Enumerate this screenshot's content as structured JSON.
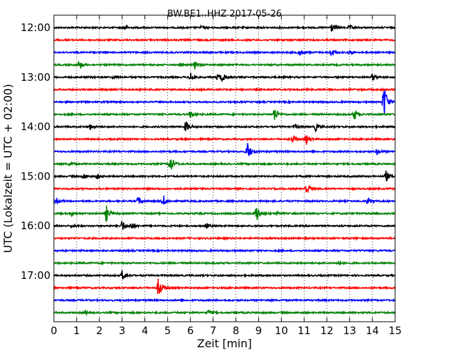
{
  "chart_data": {
    "type": "line",
    "title": "BW.BE1..HHZ 2017-05-26",
    "xlabel": "Zeit  [min]",
    "ylabel": "UTC (Lokalzeit = UTC + 02:00)",
    "xlim": [
      0,
      15
    ],
    "x_ticks": [
      0,
      1,
      2,
      3,
      4,
      5,
      6,
      7,
      8,
      9,
      10,
      11,
      12,
      13,
      14,
      15
    ],
    "y_tick_labels": [
      "12:00",
      "13:00",
      "14:00",
      "15:00",
      "16:00",
      "17:00"
    ],
    "row_interval_min": 15,
    "grid": "vertical dotted",
    "colors": [
      "#000000",
      "#ff0000",
      "#0000ff",
      "#008000"
    ],
    "rows": [
      {
        "start": "12:00",
        "color": "#000000",
        "events": [
          {
            "t": 3.1,
            "amp": 0.25
          },
          {
            "t": 6.5,
            "amp": 0.15
          },
          {
            "t": 12.2,
            "amp": 0.35
          },
          {
            "t": 13.0,
            "amp": 0.2
          }
        ]
      },
      {
        "start": "12:15",
        "color": "#ff0000",
        "events": []
      },
      {
        "start": "12:30",
        "color": "#0000ff",
        "events": [
          {
            "t": 10.8,
            "amp": 0.25
          },
          {
            "t": 12.2,
            "amp": 0.3
          },
          {
            "t": 13.0,
            "amp": 0.15
          }
        ]
      },
      {
        "start": "12:45",
        "color": "#008000",
        "events": [
          {
            "t": 1.1,
            "amp": 0.35
          },
          {
            "t": 6.2,
            "amp": 0.3
          }
        ]
      },
      {
        "start": "13:00",
        "color": "#000000",
        "events": [
          {
            "t": 2.6,
            "amp": 0.12
          },
          {
            "t": 6.0,
            "amp": 0.4
          },
          {
            "t": 7.2,
            "amp": 0.3
          },
          {
            "t": 7.4,
            "amp": 0.3
          },
          {
            "t": 14.0,
            "amp": 0.3
          }
        ]
      },
      {
        "start": "13:15",
        "color": "#ff0000",
        "events": []
      },
      {
        "start": "13:30",
        "color": "#0000ff",
        "events": [
          {
            "t": 14.5,
            "amp": 1.6
          }
        ]
      },
      {
        "start": "13:45",
        "color": "#008000",
        "events": [
          {
            "t": 6.0,
            "amp": 0.3
          },
          {
            "t": 9.7,
            "amp": 0.6
          },
          {
            "t": 13.2,
            "amp": 0.5
          }
        ]
      },
      {
        "start": "14:00",
        "color": "#000000",
        "events": [
          {
            "t": 1.6,
            "amp": 0.2
          },
          {
            "t": 5.8,
            "amp": 0.5
          },
          {
            "t": 10.6,
            "amp": 0.15
          },
          {
            "t": 11.5,
            "amp": 0.3
          }
        ]
      },
      {
        "start": "14:15",
        "color": "#ff0000",
        "events": [
          {
            "t": 10.5,
            "amp": 0.35
          },
          {
            "t": 11.1,
            "amp": 0.4
          }
        ]
      },
      {
        "start": "14:30",
        "color": "#0000ff",
        "events": [
          {
            "t": 8.5,
            "amp": 0.8
          },
          {
            "t": 14.2,
            "amp": 0.25
          }
        ]
      },
      {
        "start": "14:45",
        "color": "#008000",
        "events": [
          {
            "t": 0.7,
            "amp": 0.15
          },
          {
            "t": 5.1,
            "amp": 0.8
          }
        ]
      },
      {
        "start": "15:00",
        "color": "#000000",
        "events": [
          {
            "t": 1.3,
            "amp": 0.2
          },
          {
            "t": 1.9,
            "amp": 0.2
          },
          {
            "t": 14.6,
            "amp": 0.45
          }
        ]
      },
      {
        "start": "15:15",
        "color": "#ff0000",
        "events": [
          {
            "t": 11.1,
            "amp": 0.5
          }
        ]
      },
      {
        "start": "15:30",
        "color": "#0000ff",
        "events": [
          {
            "t": 0.1,
            "amp": 0.3
          },
          {
            "t": 3.7,
            "amp": 0.35
          },
          {
            "t": 4.8,
            "amp": 0.5
          },
          {
            "t": 13.8,
            "amp": 0.3
          }
        ]
      },
      {
        "start": "15:45",
        "color": "#008000",
        "events": [
          {
            "t": 0.8,
            "amp": 0.2
          },
          {
            "t": 2.3,
            "amp": 0.7
          },
          {
            "t": 8.9,
            "amp": 0.8
          },
          {
            "t": 9.8,
            "amp": 0.15
          }
        ]
      },
      {
        "start": "16:00",
        "color": "#000000",
        "events": [
          {
            "t": 0.8,
            "amp": 0.15
          },
          {
            "t": 3.0,
            "amp": 0.5
          },
          {
            "t": 3.4,
            "amp": 0.3
          },
          {
            "t": 6.7,
            "amp": 0.2
          }
        ]
      },
      {
        "start": "16:15",
        "color": "#ff0000",
        "events": []
      },
      {
        "start": "16:30",
        "color": "#0000ff",
        "events": []
      },
      {
        "start": "16:45",
        "color": "#008000",
        "events": [
          {
            "t": 12.5,
            "amp": 0.15
          }
        ]
      },
      {
        "start": "17:00",
        "color": "#000000",
        "events": [
          {
            "t": 3.0,
            "amp": 0.4
          }
        ]
      },
      {
        "start": "17:15",
        "color": "#ff0000",
        "events": [
          {
            "t": 4.6,
            "amp": 0.9
          }
        ]
      },
      {
        "start": "17:30",
        "color": "#0000ff",
        "events": []
      },
      {
        "start": "17:45",
        "color": "#008000",
        "events": [
          {
            "t": 1.4,
            "amp": 0.15
          },
          {
            "t": 6.8,
            "amp": 0.2
          }
        ]
      }
    ]
  }
}
